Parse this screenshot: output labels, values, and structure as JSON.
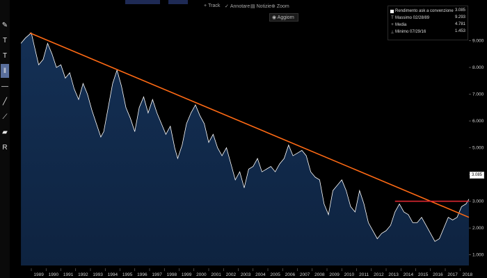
{
  "toolbar": {
    "tools": [
      {
        "name": "pencil-tool",
        "glyph": "✎"
      },
      {
        "name": "text-percent-tool",
        "glyph": "T"
      },
      {
        "name": "text-dollar-tool",
        "glyph": "T"
      },
      {
        "name": "fibonacci-tool",
        "glyph": "‖",
        "active": true
      },
      {
        "name": "horizontal-line-tool",
        "glyph": "—"
      },
      {
        "name": "trend-line-tool",
        "glyph": "╱"
      },
      {
        "name": "curve-tool",
        "glyph": "⟋"
      },
      {
        "name": "channel-tool",
        "glyph": "▰"
      },
      {
        "name": "regression-tool",
        "glyph": "R"
      }
    ]
  },
  "menu": {
    "track": "Track",
    "annotate": "Annotare",
    "news": "Notizie",
    "zoom": "Zoom",
    "refresh": "Aggiorn"
  },
  "legend": {
    "rows": [
      {
        "label": "Rendimento ask a convenzione",
        "value": "3.085",
        "marker": "swatch"
      },
      {
        "label": "Massimo 02/28/89",
        "value": "9.293",
        "marker": "T"
      },
      {
        "label": "Media",
        "value": "4.781",
        "marker": "+"
      },
      {
        "label": "Minimo 07/29/16",
        "value": "1.453",
        "marker": "⊥"
      }
    ]
  },
  "last_value_tag": "3.085",
  "colors": {
    "area_fill_top": "#143055",
    "area_fill_bottom": "#0e2340",
    "price_line": "#ffffff",
    "trend_line": "#ff6a14",
    "resistance_line": "#e02832",
    "background": "#000000"
  },
  "chart_data": {
    "type": "area",
    "title": "",
    "xlabel": "",
    "ylabel": "",
    "x_ticks": [
      "1989",
      "1990",
      "1991",
      "1992",
      "1993",
      "1994",
      "1995",
      "1996",
      "1997",
      "1998",
      "1999",
      "2000",
      "2001",
      "2002",
      "2003",
      "2004",
      "2005",
      "2006",
      "2007",
      "2008",
      "2009",
      "2010",
      "2011",
      "2012",
      "2013",
      "2014",
      "2015",
      "2016",
      "2017",
      "2018"
    ],
    "y_ticks": [
      "9.000",
      "8.000",
      "7.000",
      "6.000",
      "5.000",
      "4.000",
      "3.000",
      "2.000",
      "1.000"
    ],
    "ylim": [
      0.6,
      10.0
    ],
    "xlim": [
      1988.2,
      2018.6
    ],
    "grid": false,
    "legend_position": "top-right",
    "series": [
      {
        "name": "Rendimento ask a convenzione",
        "x": [
          1988.3,
          1988.6,
          1989.0,
          1989.2,
          1989.5,
          1989.8,
          1990.1,
          1990.4,
          1990.7,
          1991.0,
          1991.3,
          1991.6,
          1991.9,
          1992.2,
          1992.5,
          1992.8,
          1993.1,
          1993.4,
          1993.7,
          1993.9,
          1994.2,
          1994.5,
          1994.8,
          1995.1,
          1995.4,
          1995.7,
          1996.0,
          1996.3,
          1996.6,
          1996.9,
          1997.2,
          1997.5,
          1997.8,
          1998.1,
          1998.4,
          1998.7,
          1998.9,
          1999.2,
          1999.5,
          1999.8,
          2000.1,
          2000.4,
          2000.7,
          2001.0,
          2001.3,
          2001.6,
          2001.9,
          2002.2,
          2002.5,
          2002.8,
          2003.1,
          2003.4,
          2003.7,
          2004.0,
          2004.3,
          2004.6,
          2004.9,
          2005.2,
          2005.5,
          2005.8,
          2006.1,
          2006.4,
          2006.7,
          2007.0,
          2007.3,
          2007.6,
          2007.9,
          2008.2,
          2008.5,
          2008.8,
          2009.1,
          2009.4,
          2009.7,
          2010.0,
          2010.3,
          2010.6,
          2010.9,
          2011.2,
          2011.5,
          2011.8,
          2012.1,
          2012.4,
          2012.7,
          2013.0,
          2013.3,
          2013.6,
          2013.9,
          2014.2,
          2014.5,
          2014.8,
          2015.1,
          2015.4,
          2015.7,
          2016.0,
          2016.3,
          2016.6,
          2016.9,
          2017.2,
          2017.5,
          2017.8,
          2018.1,
          2018.4,
          2018.6
        ],
        "y": [
          8.9,
          9.1,
          9.29,
          8.8,
          8.1,
          8.3,
          8.9,
          8.5,
          8.0,
          8.1,
          7.6,
          7.8,
          7.2,
          6.8,
          7.4,
          7.0,
          6.4,
          5.9,
          5.4,
          5.6,
          6.5,
          7.4,
          7.9,
          7.3,
          6.5,
          6.1,
          5.6,
          6.5,
          6.9,
          6.3,
          6.8,
          6.3,
          5.9,
          5.5,
          5.8,
          5.0,
          4.6,
          5.1,
          5.9,
          6.3,
          6.6,
          6.2,
          5.9,
          5.2,
          5.5,
          5.0,
          4.7,
          5.0,
          4.4,
          3.8,
          4.1,
          3.5,
          4.2,
          4.3,
          4.6,
          4.1,
          4.2,
          4.3,
          4.1,
          4.4,
          4.6,
          5.1,
          4.7,
          4.8,
          4.9,
          4.7,
          4.1,
          3.9,
          3.8,
          2.9,
          2.5,
          3.4,
          3.6,
          3.8,
          3.4,
          2.8,
          2.6,
          3.4,
          2.9,
          2.2,
          1.9,
          1.6,
          1.8,
          1.9,
          2.1,
          2.6,
          2.9,
          2.6,
          2.5,
          2.2,
          2.2,
          2.4,
          2.1,
          1.8,
          1.5,
          1.6,
          2.0,
          2.4,
          2.3,
          2.4,
          2.8,
          2.9,
          3.08
        ]
      }
    ],
    "trend_line": {
      "x": [
        1988.9,
        2018.6
      ],
      "y": [
        9.29,
        2.4
      ]
    },
    "resistance_line": {
      "x": [
        2013.6,
        2018.6
      ],
      "y": [
        3.0,
        3.0
      ]
    }
  }
}
